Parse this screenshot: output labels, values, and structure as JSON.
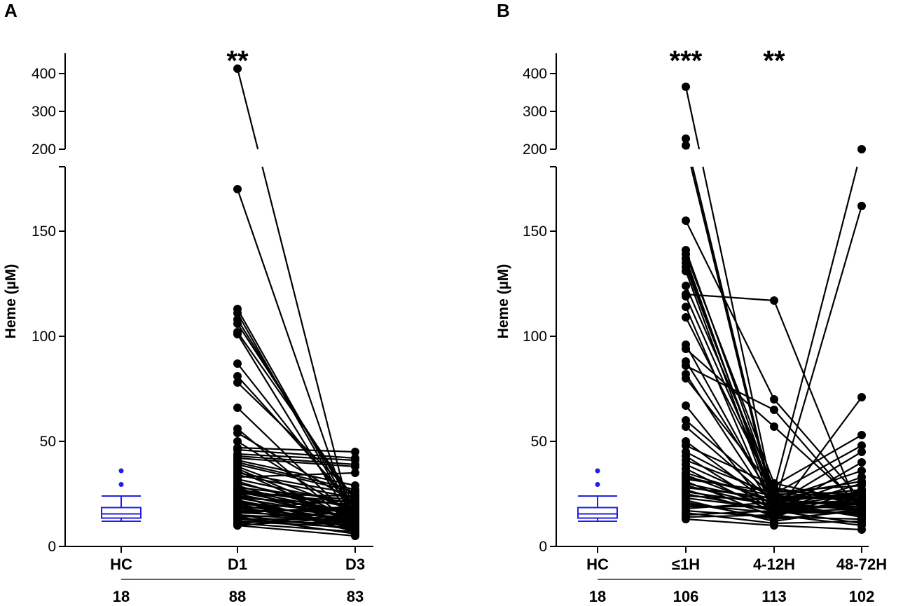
{
  "chart_data": [
    {
      "type": "scatter",
      "panel_label": "A",
      "ylabel": "Heme (µM)",
      "ylim_lower": [
        0,
        180
      ],
      "ylim_upper": [
        200,
        420
      ],
      "yticks_lower": [
        0,
        50,
        100,
        150
      ],
      "yticks_upper": [
        200,
        300,
        400
      ],
      "ytick_labels_lower": [
        "0",
        "50",
        "100",
        "150"
      ],
      "ytick_labels_upper": [
        "200",
        "300",
        "400"
      ],
      "categories": [
        "HC",
        "D1",
        "D3"
      ],
      "n_labels": [
        "18",
        "88",
        "83"
      ],
      "significance": [
        "",
        "**",
        ""
      ],
      "hc_box": {
        "whisker_low": 12,
        "q1": 13.5,
        "median": 15.5,
        "q3": 18.5,
        "whisker_high": 24,
        "outliers": [
          29.5,
          36
        ]
      },
      "paired": {
        "from_values": [
          413,
          170,
          113,
          111,
          108,
          106,
          102,
          101,
          87,
          81,
          78,
          66,
          56,
          54,
          50,
          47,
          46,
          44,
          43,
          42,
          41,
          40,
          39,
          38,
          37,
          36,
          35,
          34,
          33,
          32,
          31,
          30,
          29,
          28,
          28,
          27,
          27,
          26,
          26,
          25,
          25,
          24,
          24,
          23,
          23,
          22,
          22,
          21,
          21,
          20,
          20,
          19,
          19,
          18,
          18,
          17,
          17,
          16,
          16,
          15,
          15,
          14,
          14,
          13,
          13,
          12,
          12,
          11,
          11,
          10,
          10
        ],
        "to_values": [
          6,
          8,
          14,
          12,
          18,
          20,
          22,
          10,
          16,
          19,
          24,
          12,
          9,
          21,
          15,
          45,
          42,
          41,
          39,
          38,
          29,
          27,
          26,
          17,
          13,
          11,
          25,
          23,
          35,
          20,
          14,
          18,
          12,
          10,
          22,
          16,
          19,
          15,
          21,
          13,
          24,
          17,
          8,
          14,
          20,
          11,
          7,
          16,
          12,
          18,
          10,
          15,
          9,
          13,
          22,
          11,
          17,
          14,
          19,
          8,
          12,
          6,
          16,
          10,
          13,
          9,
          11,
          7,
          15,
          5,
          14
        ]
      }
    },
    {
      "type": "scatter",
      "panel_label": "B",
      "ylabel": "Heme (µM)",
      "ylim_lower": [
        0,
        180
      ],
      "ylim_upper": [
        200,
        420
      ],
      "yticks_lower": [
        0,
        50,
        100,
        150
      ],
      "yticks_upper": [
        200,
        300,
        400
      ],
      "ytick_labels_lower": [
        "0",
        "50",
        "100",
        "150"
      ],
      "ytick_labels_upper": [
        "200",
        "300",
        "400"
      ],
      "categories": [
        "HC",
        "≤1H",
        "4-12H",
        "48-72H"
      ],
      "n_labels": [
        "18",
        "106",
        "113",
        "102"
      ],
      "significance": [
        "",
        "***",
        "**",
        ""
      ],
      "hc_box": {
        "whisker_low": 12,
        "q1": 13.5,
        "median": 15.5,
        "q3": 18.5,
        "whisker_high": 24,
        "outliers": [
          29.5,
          36
        ]
      },
      "paired": {
        "g1_values": [
          365,
          228,
          210,
          155,
          141,
          139,
          137,
          135,
          133,
          131,
          124,
          120,
          119,
          114,
          109,
          96,
          94,
          88,
          86,
          82,
          80,
          67,
          60,
          57,
          50,
          48,
          45,
          43,
          41,
          39,
          37,
          35,
          34,
          33,
          32,
          31,
          30,
          29,
          28,
          27,
          26,
          25,
          24,
          23,
          22,
          21,
          20,
          19,
          18,
          17,
          16,
          15,
          14,
          13
        ],
        "g2_values": [
          22,
          20,
          18,
          70,
          25,
          30,
          19,
          21,
          23,
          17,
          28,
          117,
          24,
          16,
          26,
          20,
          57,
          22,
          65,
          18,
          27,
          15,
          24,
          21,
          19,
          29,
          23,
          17,
          25,
          20,
          16,
          22,
          18,
          24,
          26,
          14,
          21,
          19,
          23,
          15,
          20,
          17,
          22,
          18,
          12,
          13,
          16,
          19,
          21,
          14,
          11,
          17,
          15,
          10
        ],
        "g3_values": [
          25,
          18,
          20,
          22,
          24,
          21,
          19,
          17,
          23,
          16,
          20,
          14,
          22,
          18,
          25,
          21,
          19,
          24,
          17,
          15,
          200,
          71,
          23,
          20,
          162,
          53,
          27,
          30,
          48,
          45,
          40,
          36,
          33,
          31,
          29,
          27,
          26,
          25,
          24,
          23,
          22,
          21,
          20,
          19,
          18,
          17,
          16,
          15,
          14,
          13,
          12,
          11,
          10,
          8
        ]
      }
    }
  ]
}
